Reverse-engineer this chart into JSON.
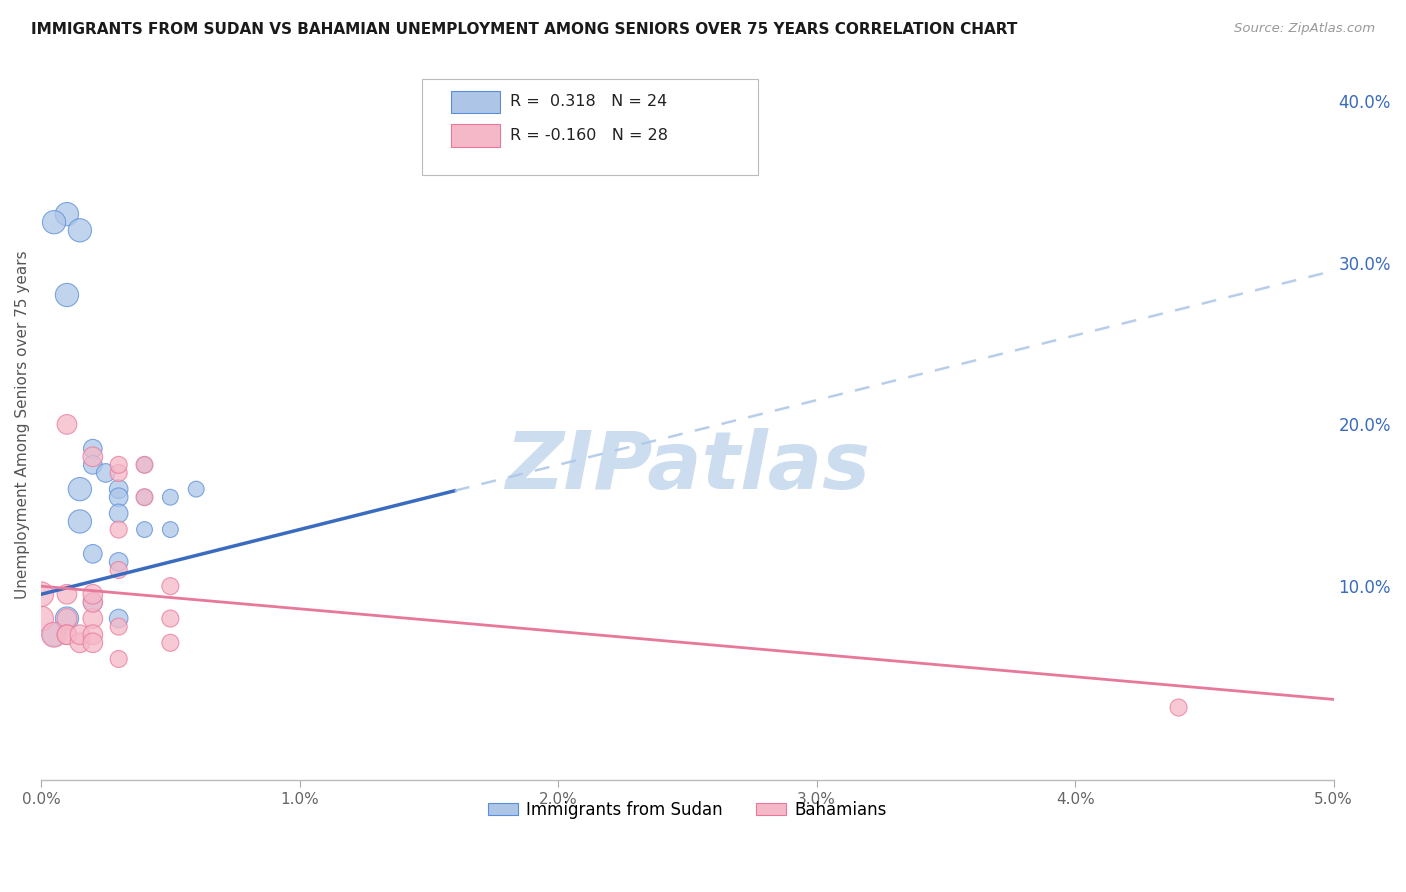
{
  "title": "IMMIGRANTS FROM SUDAN VS BAHAMIAN UNEMPLOYMENT AMONG SENIORS OVER 75 YEARS CORRELATION CHART",
  "source": "Source: ZipAtlas.com",
  "ylabel": "Unemployment Among Seniors over 75 years",
  "legend_label1": "Immigrants from Sudan",
  "legend_label2": "Bahamians",
  "R1": 0.318,
  "N1": 24,
  "R2": -0.16,
  "N2": 28,
  "xlim": [
    0.0,
    0.05
  ],
  "ylim": [
    -0.02,
    0.42
  ],
  "right_yticks": [
    0.0,
    0.1,
    0.2,
    0.3,
    0.4
  ],
  "right_yticklabels": [
    "",
    "10.0%",
    "20.0%",
    "30.0%",
    "40.0%"
  ],
  "xticks": [
    0.0,
    0.01,
    0.02,
    0.03,
    0.04,
    0.05
  ],
  "xticklabels": [
    "0.0%",
    "1.0%",
    "2.0%",
    "3.0%",
    "4.0%",
    "5.0%"
  ],
  "color_blue": "#adc6e8",
  "color_blue_dark": "#5b8dd9",
  "color_pink": "#f5b8c8",
  "color_pink_dark": "#e8789a",
  "color_line_blue": "#3a6bbf",
  "color_line_pink": "#e8789a",
  "color_line_blue_dashed": "#b0c8e8",
  "blue_scatter_x": [
    0.0005,
    0.001,
    0.001,
    0.0015,
    0.0015,
    0.002,
    0.002,
    0.002,
    0.002,
    0.003,
    0.003,
    0.003,
    0.003,
    0.004,
    0.004,
    0.004,
    0.005,
    0.005,
    0.006,
    0.001,
    0.0005,
    0.0015,
    0.0025,
    0.003
  ],
  "blue_scatter_y": [
    0.07,
    0.28,
    0.08,
    0.14,
    0.16,
    0.185,
    0.175,
    0.12,
    0.09,
    0.16,
    0.155,
    0.115,
    0.08,
    0.175,
    0.155,
    0.135,
    0.155,
    0.135,
    0.16,
    0.33,
    0.325,
    0.32,
    0.17,
    0.145
  ],
  "pink_scatter_x": [
    0.0,
    0.0,
    0.0005,
    0.001,
    0.001,
    0.001,
    0.001,
    0.001,
    0.0015,
    0.0015,
    0.002,
    0.002,
    0.002,
    0.002,
    0.002,
    0.002,
    0.003,
    0.003,
    0.003,
    0.003,
    0.003,
    0.003,
    0.004,
    0.004,
    0.005,
    0.005,
    0.005,
    0.044
  ],
  "pink_scatter_y": [
    0.08,
    0.095,
    0.07,
    0.08,
    0.095,
    0.07,
    0.2,
    0.07,
    0.065,
    0.07,
    0.08,
    0.09,
    0.095,
    0.18,
    0.07,
    0.065,
    0.055,
    0.075,
    0.11,
    0.135,
    0.17,
    0.175,
    0.175,
    0.155,
    0.08,
    0.065,
    0.1,
    0.025
  ],
  "watermark": "ZIPatlas",
  "watermark_color": "#ccddf0",
  "background_color": "#ffffff",
  "grid_color": "#dddddd",
  "blue_line_solid_end": 0.016,
  "blue_line_dash_start": 0.016,
  "blue_line_y_intercept": 0.095,
  "blue_line_slope": 4.0,
  "pink_line_y_intercept": 0.1,
  "pink_line_slope": -1.4
}
